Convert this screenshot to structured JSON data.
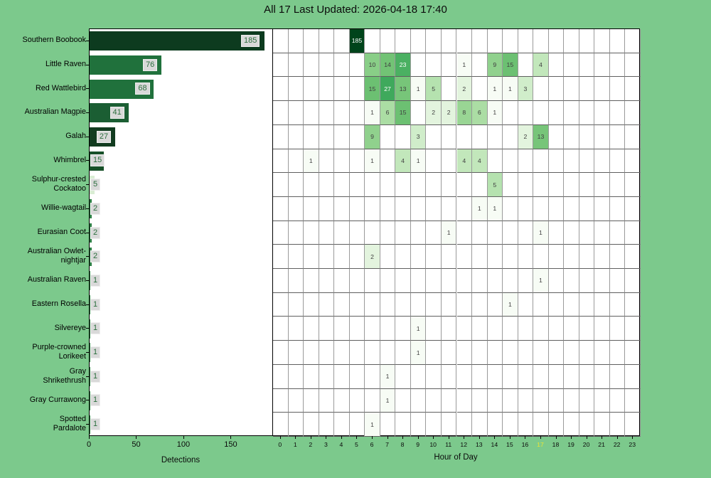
{
  "title": "All 17 Last Updated: 2026-04-18 17:40",
  "colors": {
    "figure_background": "#7cc98c",
    "axes_background": "#ffffff",
    "spine": "#000000",
    "grid_vertical": "#9a9a9a",
    "grid_horizontal": "#5f5f5f",
    "bar_label_text": "#2b6e3d",
    "bar_label_box": "#d9d9d9",
    "cell_text_dark": "#404040",
    "cell_text_light": "#ffffff",
    "tick_label": "#0b0b0b",
    "current_hour_highlight": "#e8e435",
    "greens_colormap_stops": [
      "#f7fcf5",
      "#e5f5e0",
      "#c7e9c0",
      "#a1d99b",
      "#74c476",
      "#41ab5d",
      "#238b45",
      "#006d2c",
      "#00441b"
    ]
  },
  "chart_data": [
    {
      "type": "bar",
      "orientation": "horizontal",
      "xlabel": "Detections",
      "xticks": [
        0,
        50,
        100,
        150
      ],
      "xlim": [
        0,
        194
      ],
      "categories": [
        "Southern Boobook",
        "Little Raven",
        "Red Wattlebird",
        "Australian Magpie",
        "Galah",
        "Whimbrel",
        "Sulphur-crested Cockatoo",
        "Willie-wagtail",
        "Eurasian Coot",
        "Australian Owlet-nightjar",
        "Australian Raven",
        "Eastern Rosella",
        "Silvereye",
        "Purple-crowned Lorikeet",
        "Gray Shrikethrush",
        "Gray Currawong",
        "Spotted Pardalote"
      ],
      "category_label_lines": [
        [
          "Southern Boobook"
        ],
        [
          "Little Raven"
        ],
        [
          "Red Wattlebird"
        ],
        [
          "Australian Magpie"
        ],
        [
          "Galah"
        ],
        [
          "Whimbrel"
        ],
        [
          "Sulphur-crested",
          "Cockatoo"
        ],
        [
          "Willie-wagtail"
        ],
        [
          "Eurasian Coot"
        ],
        [
          "Australian Owlet-",
          "nightjar"
        ],
        [
          "Australian Raven"
        ],
        [
          "Eastern Rosella"
        ],
        [
          "Silvereye"
        ],
        [
          "Purple-crowned",
          "Lorikeet"
        ],
        [
          "Gray",
          "Shrikethrush"
        ],
        [
          "Gray Currawong"
        ],
        [
          "Spotted",
          "Pardalote"
        ]
      ],
      "values": [
        185,
        76,
        68,
        41,
        27,
        15,
        5,
        2,
        2,
        2,
        1,
        1,
        1,
        1,
        1,
        1,
        1
      ],
      "bar_colors": [
        "#0d3b1f",
        "#20713c",
        "#20713c",
        "#1b5e33",
        "#123c20",
        "#175028",
        "#d9edd3",
        "#2d7f45",
        "#2d7f45",
        "#2d7f45",
        "#35874a",
        "#35874a",
        "#35874a",
        "#35874a",
        "#35874a",
        "#35874a",
        "#35874a"
      ]
    },
    {
      "type": "heatmap",
      "xlabel": "Hour of Day",
      "x": [
        0,
        1,
        2,
        3,
        4,
        5,
        6,
        7,
        8,
        9,
        10,
        11,
        12,
        13,
        14,
        15,
        16,
        17,
        18,
        19,
        20,
        21,
        22,
        23
      ],
      "highlighted_hour": 17,
      "vmax": 185,
      "color_scale": "log",
      "rows": [
        {
          "species": "Southern Boobook",
          "cells": {
            "5": 185
          }
        },
        {
          "species": "Little Raven",
          "cells": {
            "6": 10,
            "7": 14,
            "8": 23,
            "12": 1,
            "14": 9,
            "15": 15,
            "17": 4
          }
        },
        {
          "species": "Red Wattlebird",
          "cells": {
            "6": 15,
            "7": 27,
            "8": 13,
            "9": 1,
            "10": 5,
            "12": 2,
            "14": 1,
            "15": 1,
            "16": 3
          }
        },
        {
          "species": "Australian Magpie",
          "cells": {
            "6": 1,
            "7": 6,
            "8": 15,
            "10": 2,
            "11": 2,
            "12": 8,
            "13": 6,
            "14": 1
          }
        },
        {
          "species": "Galah",
          "cells": {
            "6": 9,
            "9": 3,
            "16": 2,
            "17": 13
          }
        },
        {
          "species": "Whimbrel",
          "cells": {
            "2": 1,
            "6": 1,
            "8": 4,
            "9": 1,
            "12": 4,
            "13": 4
          }
        },
        {
          "species": "Sulphur-crested Cockatoo",
          "cells": {
            "14": 5
          }
        },
        {
          "species": "Willie-wagtail",
          "cells": {
            "13": 1,
            "14": 1
          }
        },
        {
          "species": "Eurasian Coot",
          "cells": {
            "11": 1,
            "17": 1
          }
        },
        {
          "species": "Australian Owlet-nightjar",
          "cells": {
            "6": 2
          }
        },
        {
          "species": "Australian Raven",
          "cells": {
            "17": 1
          }
        },
        {
          "species": "Eastern Rosella",
          "cells": {
            "15": 1
          }
        },
        {
          "species": "Silvereye",
          "cells": {
            "9": 1
          }
        },
        {
          "species": "Purple-crowned Lorikeet",
          "cells": {
            "9": 1
          }
        },
        {
          "species": "Gray Shrikethrush",
          "cells": {
            "7": 1
          }
        },
        {
          "species": "Gray Currawong",
          "cells": {
            "7": 1
          }
        },
        {
          "species": "Spotted Pardalote",
          "cells": {
            "6": 1
          }
        }
      ]
    }
  ]
}
